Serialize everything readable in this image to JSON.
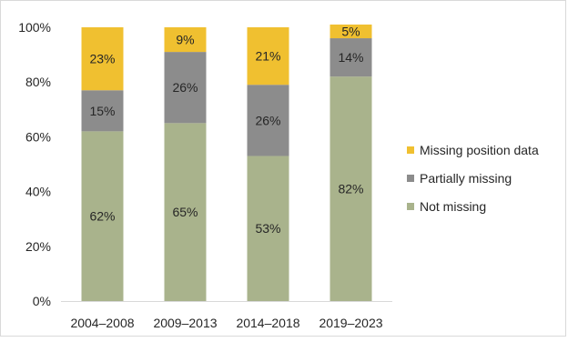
{
  "chart_data": {
    "type": "bar",
    "stacked": true,
    "categories": [
      "2004–2008",
      "2009–2013",
      "2014–2018",
      "2019–2023"
    ],
    "series": [
      {
        "name": "Not missing",
        "values": [
          62,
          65,
          53,
          82
        ],
        "labels": [
          "62%",
          "65%",
          "53%",
          "82%"
        ],
        "color": "#a9b38c"
      },
      {
        "name": "Partially missing",
        "values": [
          15,
          26,
          26,
          14
        ],
        "labels": [
          "15%",
          "26%",
          "26%",
          "14%"
        ],
        "color": "#8c8c8c"
      },
      {
        "name": "Missing position data",
        "values": [
          23,
          9,
          21,
          5
        ],
        "labels": [
          "23%",
          "9%",
          "21%",
          "5%"
        ],
        "color": "#f0c030"
      }
    ],
    "y_ticks": [
      "0%",
      "20%",
      "40%",
      "60%",
      "80%",
      "100%"
    ],
    "ylim": [
      0,
      100
    ],
    "grid": false,
    "legend_position": "right",
    "legend_order": [
      "Missing position data",
      "Partially missing",
      "Not missing"
    ],
    "title": "",
    "xlabel": "",
    "ylabel": ""
  }
}
